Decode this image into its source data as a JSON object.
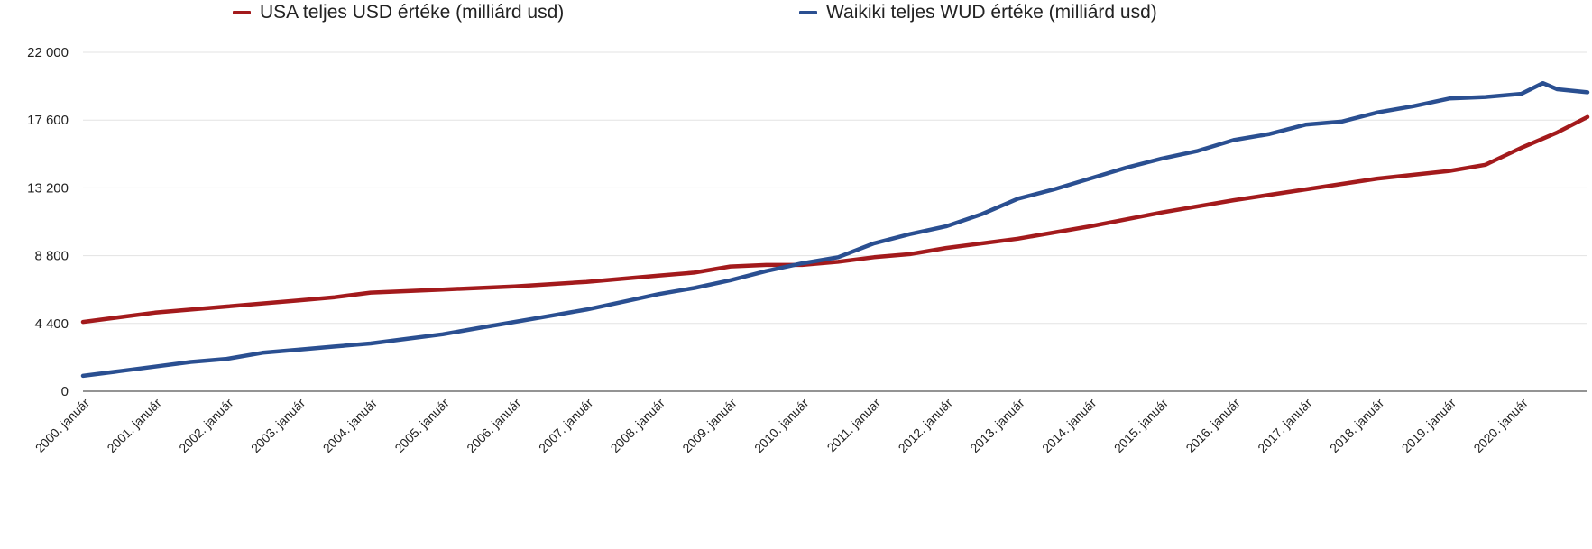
{
  "chart_data": {
    "type": "line",
    "title": "",
    "xlabel": "",
    "ylabel": "",
    "ylim": [
      0,
      22000
    ],
    "grid": true,
    "legend_position": "top",
    "y_tick_labels": [
      "0",
      "4 400",
      "8 800",
      "13 200",
      "17 600",
      "22 000"
    ],
    "y_ticks": [
      0,
      4400,
      8800,
      13200,
      17600,
      22000
    ],
    "x_tick_labels": [
      "2000. január",
      "2001. január",
      "2002. január",
      "2003. január",
      "2004. január",
      "2005. január",
      "2006. január",
      "2007. január",
      "2008. január",
      "2009. január",
      "2010. január",
      "2011. január",
      "2012. január",
      "2013. január",
      "2014. január",
      "2015. január",
      "2016. január",
      "2017. január",
      "2018. január",
      "2019. január",
      "2020. január"
    ],
    "x_range": [
      2000.0,
      2020.92
    ],
    "series": [
      {
        "name": "USA teljes USD értéke (milliárd usd)",
        "color": "#a31a1c",
        "x": [
          2000.0,
          2001.0,
          2002.0,
          2003.0,
          2003.5,
          2004.0,
          2005.0,
          2006.0,
          2007.0,
          2008.0,
          2008.5,
          2009.0,
          2009.5,
          2010.0,
          2010.5,
          2011.0,
          2011.5,
          2012.0,
          2013.0,
          2014.0,
          2015.0,
          2016.0,
          2017.0,
          2018.0,
          2019.0,
          2019.5,
          2020.0,
          2020.5,
          2020.92
        ],
        "values": [
          4500,
          5100,
          5500,
          5900,
          6100,
          6400,
          6600,
          6800,
          7100,
          7500,
          7700,
          8100,
          8200,
          8200,
          8400,
          8700,
          8900,
          9300,
          9900,
          10700,
          11600,
          12400,
          13100,
          13800,
          14300,
          14700,
          15800,
          16800,
          17800
        ]
      },
      {
        "name": "Waikiki teljes WUD értéke (milliárd usd)",
        "color": "#2a4f91",
        "x": [
          2000.0,
          2000.5,
          2001.0,
          2001.5,
          2002.0,
          2002.5,
          2003.0,
          2003.5,
          2004.0,
          2004.5,
          2005.0,
          2005.5,
          2006.0,
          2006.5,
          2007.0,
          2007.5,
          2008.0,
          2008.5,
          2009.0,
          2009.5,
          2010.0,
          2010.5,
          2011.0,
          2011.5,
          2012.0,
          2012.5,
          2013.0,
          2013.5,
          2014.0,
          2014.5,
          2015.0,
          2015.5,
          2016.0,
          2016.5,
          2017.0,
          2017.5,
          2018.0,
          2018.5,
          2019.0,
          2019.5,
          2020.0,
          2020.3,
          2020.5,
          2020.92
        ],
        "values": [
          1000,
          1300,
          1600,
          1900,
          2100,
          2500,
          2700,
          2900,
          3100,
          3400,
          3700,
          4100,
          4500,
          4900,
          5300,
          5800,
          6300,
          6700,
          7200,
          7800,
          8300,
          8700,
          9600,
          10200,
          10700,
          11500,
          12500,
          13100,
          13800,
          14500,
          15100,
          15600,
          16300,
          16700,
          17300,
          17500,
          18100,
          18500,
          19000,
          19100,
          19300,
          20000,
          19600,
          19400
        ]
      }
    ]
  }
}
